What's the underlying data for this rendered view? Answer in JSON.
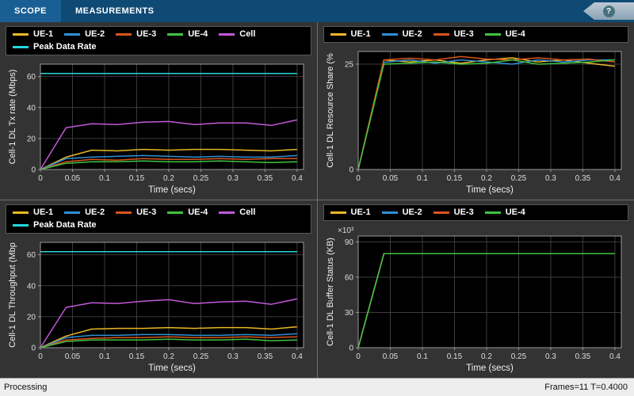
{
  "toolbar": {
    "tabs": [
      {
        "label": "SCOPE",
        "selected": true
      },
      {
        "label": "MEASUREMENTS",
        "selected": false
      }
    ],
    "help_label": "?"
  },
  "statusbar": {
    "left": "Processing",
    "right": "Frames=11  T=0.4000"
  },
  "colors": {
    "ue1": "#e9b826",
    "ue2": "#2f8fd6",
    "ue3": "#d9541e",
    "ue4": "#3fc43f",
    "cell": "#c159d9",
    "peak": "#25d6e0"
  },
  "chart_data": [
    {
      "name": "dl-tx-rate",
      "type": "line",
      "xlabel": "Time (secs)",
      "ylabel": "Cell-1 DL Tx rate (Mbps)",
      "x": [
        0,
        0.04,
        0.08,
        0.12,
        0.16,
        0.2,
        0.24,
        0.28,
        0.32,
        0.36,
        0.4
      ],
      "xlim": [
        0,
        0.41
      ],
      "ylim": [
        0,
        68
      ],
      "xticks": [
        0,
        0.05,
        0.1,
        0.15,
        0.2,
        0.25,
        0.3,
        0.35,
        0.4
      ],
      "yticks": [
        0,
        20,
        40,
        60
      ],
      "series": [
        {
          "name": "UE-1",
          "color": "ue1",
          "values": [
            0,
            8,
            12.5,
            12,
            13,
            12.5,
            13,
            13,
            12.5,
            12,
            13
          ]
        },
        {
          "name": "UE-2",
          "color": "ue2",
          "values": [
            0,
            7,
            8,
            8.5,
            9,
            8.5,
            8,
            8.5,
            8,
            8,
            9
          ]
        },
        {
          "name": "UE-3",
          "color": "ue3",
          "values": [
            0,
            5,
            6.5,
            6,
            7,
            6.5,
            6.5,
            7,
            6.5,
            7,
            7
          ]
        },
        {
          "name": "UE-4",
          "color": "ue4",
          "values": [
            0,
            4,
            5,
            5,
            5.5,
            5,
            5,
            5.5,
            5,
            4.5,
            5
          ]
        },
        {
          "name": "Cell",
          "color": "cell",
          "values": [
            0,
            27,
            29.5,
            29,
            30.5,
            31,
            29,
            30,
            30,
            28.5,
            32
          ]
        },
        {
          "name": "Peak Data Rate",
          "color": "peak",
          "values": [
            62,
            62,
            62,
            62,
            62,
            62,
            62,
            62,
            62,
            62,
            62
          ]
        }
      ]
    },
    {
      "name": "dl-resource-share",
      "type": "line",
      "xlabel": "Time (secs)",
      "ylabel": "Cell-1 DL Resource Share (%",
      "x": [
        0,
        0.04,
        0.08,
        0.12,
        0.16,
        0.2,
        0.24,
        0.28,
        0.32,
        0.36,
        0.4
      ],
      "xlim": [
        0,
        0.41
      ],
      "ylim": [
        0,
        28
      ],
      "xticks": [
        0,
        0.05,
        0.1,
        0.15,
        0.2,
        0.25,
        0.3,
        0.35,
        0.4
      ],
      "yticks": [
        0,
        25
      ],
      "series": [
        {
          "name": "UE-1",
          "color": "ue1",
          "values": [
            0,
            26,
            25.5,
            26,
            25.2,
            26,
            26.5,
            25.5,
            26,
            25.2,
            24.5
          ]
        },
        {
          "name": "UE-2",
          "color": "ue2",
          "values": [
            0,
            25.4,
            26,
            25.2,
            26,
            25.5,
            25,
            26,
            25.5,
            26,
            26
          ]
        },
        {
          "name": "UE-3",
          "color": "ue3",
          "values": [
            0,
            26,
            26.4,
            26,
            26.8,
            26.2,
            26,
            26.5,
            26,
            26.2,
            25.5
          ]
        },
        {
          "name": "UE-4",
          "color": "ue4",
          "values": [
            0,
            25,
            25.2,
            25.5,
            25,
            25.2,
            26,
            25,
            25.2,
            25.5,
            26
          ]
        }
      ]
    },
    {
      "name": "dl-throughput",
      "type": "line",
      "xlabel": "Time (secs)",
      "ylabel": "Cell-1 DL Throughput (Mbp",
      "x": [
        0,
        0.04,
        0.08,
        0.12,
        0.16,
        0.2,
        0.24,
        0.28,
        0.32,
        0.36,
        0.4
      ],
      "xlim": [
        0,
        0.41
      ],
      "ylim": [
        0,
        68
      ],
      "xticks": [
        0,
        0.05,
        0.1,
        0.15,
        0.2,
        0.25,
        0.3,
        0.35,
        0.4
      ],
      "yticks": [
        0,
        20,
        40,
        60
      ],
      "series": [
        {
          "name": "UE-1",
          "color": "ue1",
          "values": [
            0,
            7.5,
            12,
            12.5,
            12.5,
            13,
            12.5,
            13,
            13,
            12,
            13.5
          ]
        },
        {
          "name": "UE-2",
          "color": "ue2",
          "values": [
            0,
            6.5,
            8,
            8,
            8.5,
            8.5,
            8,
            8,
            8.5,
            8,
            9
          ]
        },
        {
          "name": "UE-3",
          "color": "ue3",
          "values": [
            0,
            5,
            6,
            6.5,
            6.5,
            7,
            6.5,
            6.5,
            7,
            6.5,
            7
          ]
        },
        {
          "name": "UE-4",
          "color": "ue4",
          "values": [
            0,
            4,
            5,
            5,
            5,
            5.5,
            5,
            5,
            5.5,
            4.5,
            5
          ]
        },
        {
          "name": "Cell",
          "color": "cell",
          "values": [
            0,
            26,
            29,
            28.5,
            30,
            31,
            28.5,
            29.5,
            30,
            28,
            31.5
          ]
        },
        {
          "name": "Peak Data Rate",
          "color": "peak",
          "values": [
            62,
            62,
            62,
            62,
            62,
            62,
            62,
            62,
            62,
            62,
            62
          ]
        }
      ]
    },
    {
      "name": "dl-buffer-status",
      "type": "line",
      "xlabel": "Time (secs)",
      "ylabel": "Cell-1 DL Buffer Status (KB)",
      "y_exponent": "×10³",
      "x": [
        0,
        0.04,
        0.08,
        0.12,
        0.16,
        0.2,
        0.24,
        0.28,
        0.32,
        0.36,
        0.4
      ],
      "xlim": [
        0,
        0.41
      ],
      "ylim": [
        0,
        95
      ],
      "xticks": [
        0,
        0.05,
        0.1,
        0.15,
        0.2,
        0.25,
        0.3,
        0.35,
        0.4
      ],
      "yticks": [
        0,
        30,
        60,
        90
      ],
      "series": [
        {
          "name": "UE-1",
          "color": "ue1",
          "values": [
            0,
            80,
            80,
            80,
            80,
            80,
            80,
            80,
            80,
            80,
            80
          ]
        },
        {
          "name": "UE-2",
          "color": "ue2",
          "values": [
            0,
            80,
            80,
            80,
            80,
            80,
            80,
            80,
            80,
            80,
            80
          ]
        },
        {
          "name": "UE-3",
          "color": "ue3",
          "values": [
            0,
            80,
            80,
            80,
            80,
            80,
            80,
            80,
            80,
            80,
            80
          ]
        },
        {
          "name": "UE-4",
          "color": "ue4",
          "values": [
            0,
            80,
            80,
            80,
            80,
            80,
            80,
            80,
            80,
            80,
            80
          ]
        }
      ]
    }
  ]
}
